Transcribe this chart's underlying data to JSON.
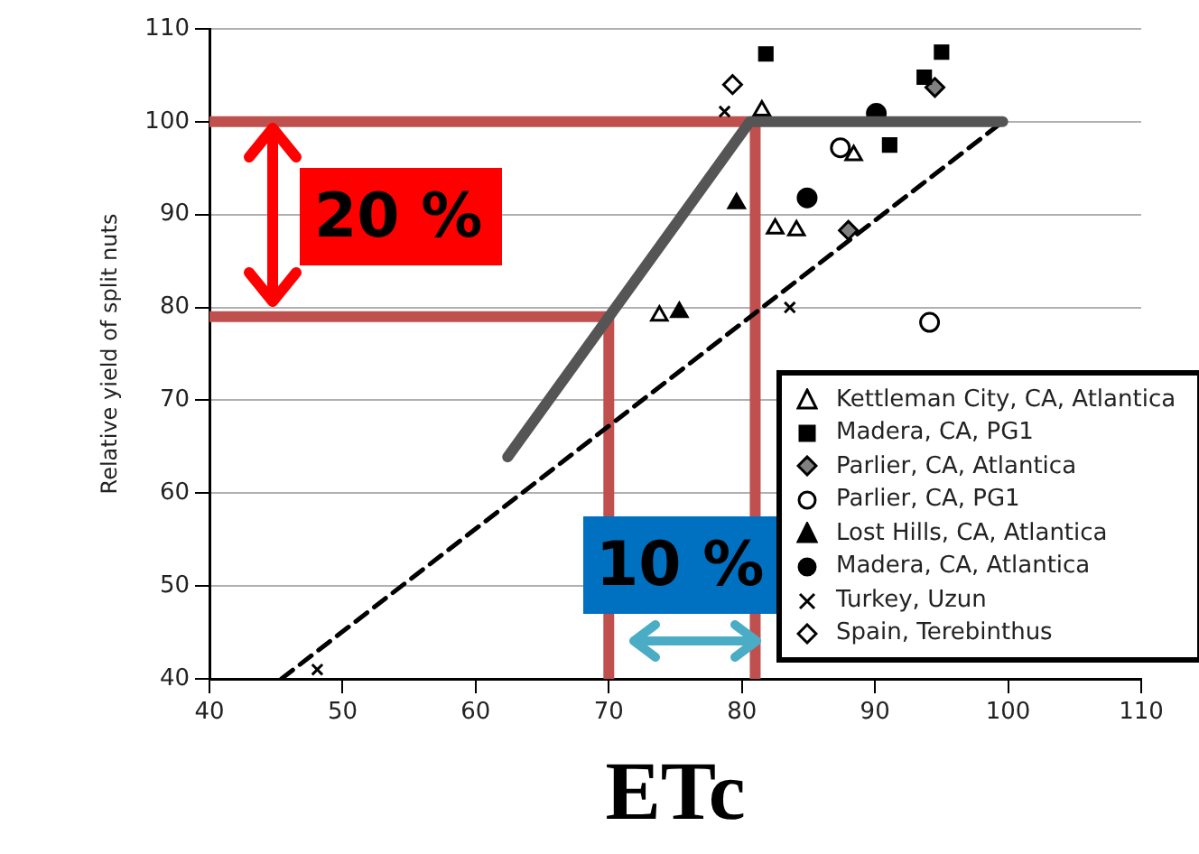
{
  "chart_data": {
    "type": "scatter",
    "xlabel": "ETc",
    "ylabel": "Relative yield of split nuts",
    "xlim": [
      40,
      110
    ],
    "xticks": [
      40,
      50,
      60,
      70,
      80,
      90,
      100,
      110
    ],
    "ylim": [
      40,
      110
    ],
    "yticks": [
      40,
      50,
      60,
      70,
      80,
      90,
      100,
      110
    ],
    "grid": "y",
    "legend": "bottom right",
    "annotations": [
      "20 %",
      "10 %"
    ],
    "series": [
      {
        "type": "line",
        "x": [
          62.4,
          80.6,
          99.6
        ],
        "values": [
          63.9,
          100,
          100
        ],
        "color": "#555555",
        "line_style": "solid",
        "marker": "none"
      },
      {
        "type": "line",
        "x": [
          45.4,
          99.6
        ],
        "values": [
          40,
          100
        ],
        "color": "#000000",
        "line_style": "dashed",
        "marker": "none"
      },
      {
        "name": "Kettleman City, CA, Atlantica",
        "marker": "triangle",
        "color": "#ffffff",
        "x": [
          81.5,
          88.4,
          82.5,
          84.1,
          73.8
        ],
        "values": [
          101.2,
          96.4,
          88.5,
          88.3,
          79.1
        ]
      },
      {
        "name": "Madera, CA, PG1",
        "marker": "square",
        "color": "#000000",
        "x": [
          81.8,
          95.0,
          93.7,
          91.1
        ],
        "values": [
          107.3,
          107.5,
          104.8,
          97.5
        ]
      },
      {
        "name": "Parlier, CA, Atlantica",
        "marker": "diamond",
        "color": "#808080",
        "x": [
          94.5,
          88.0
        ],
        "values": [
          103.7,
          88.3
        ]
      },
      {
        "name": "Parlier, CA, PG1",
        "marker": "circle",
        "color": "#ffffff",
        "x": [
          87.4,
          94.1
        ],
        "values": [
          97.2,
          78.4
        ]
      },
      {
        "name": "Lost Hills, CA, Atlantica",
        "marker": "triangle",
        "color": "#000000",
        "x": [
          79.6,
          75.3
        ],
        "values": [
          91.2,
          79.5
        ]
      },
      {
        "name": "Madera, CA, Atlantica",
        "marker": "circle",
        "color": "#000000",
        "x": [
          90.1,
          84.9
        ],
        "values": [
          100.9,
          91.8
        ]
      },
      {
        "name": "Turkey, Uzun",
        "marker": "cross",
        "color": "#000000",
        "x": [
          78.7,
          83.6,
          48.1
        ],
        "values": [
          101.1,
          80.0,
          41.0
        ]
      },
      {
        "name": "Spain, Terebinthus",
        "marker": "diamond",
        "color": "#ffffff",
        "x": [
          79.3
        ],
        "values": [
          104.0
        ]
      },
      {
        "type": "line",
        "x": [
          40,
          81
        ],
        "values": [
          100,
          100
        ],
        "color": "#c0504d",
        "line_style": "solid",
        "marker": "none"
      },
      {
        "type": "line",
        "x": [
          40,
          70
        ],
        "values": [
          79,
          79
        ],
        "color": "#c0504d",
        "line_style": "solid",
        "marker": "none"
      },
      {
        "type": "line",
        "x": [
          70,
          70
        ],
        "values": [
          40,
          79
        ],
        "color": "#c0504d",
        "line_style": "solid",
        "marker": "none"
      },
      {
        "type": "line",
        "x": [
          81,
          81
        ],
        "values": [
          40,
          100
        ],
        "color": "#c0504d",
        "line_style": "solid",
        "marker": "none"
      }
    ]
  }
}
